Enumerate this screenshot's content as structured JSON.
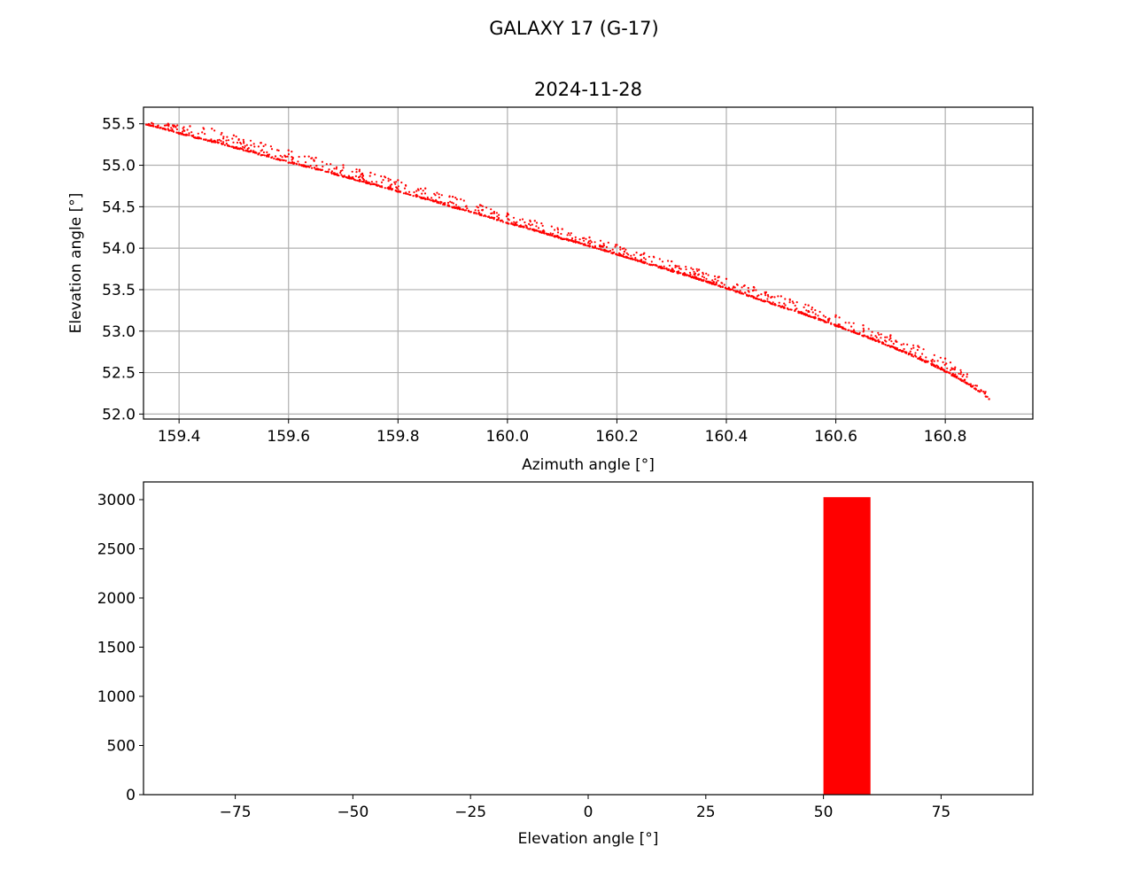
{
  "figure": {
    "suptitle": "GALAXY 17 (G-17)"
  },
  "chart_data": [
    {
      "type": "scatter",
      "title": "2024-11-28",
      "xlabel": "Azimuth angle [°]",
      "ylabel": "Elevation angle [°]",
      "xlim": [
        159.335,
        160.96
      ],
      "ylim": [
        51.94,
        55.7
      ],
      "xticks": [
        159.4,
        159.6,
        159.8,
        160.0,
        160.2,
        160.4,
        160.6,
        160.8
      ],
      "xtick_labels": [
        "159.4",
        "159.6",
        "159.8",
        "160.0",
        "160.2",
        "160.4",
        "160.6",
        "160.8"
      ],
      "yticks": [
        52.0,
        52.5,
        53.0,
        53.5,
        54.0,
        54.5,
        55.0,
        55.5
      ],
      "ytick_labels": [
        "52.0",
        "52.5",
        "53.0",
        "53.5",
        "54.0",
        "54.5",
        "55.0",
        "55.5"
      ],
      "grid": true,
      "color": "#ff0000",
      "series": [
        {
          "x": [
            159.34,
            159.37,
            159.4,
            159.43,
            159.46,
            159.5,
            159.55,
            159.6,
            159.65,
            159.7,
            159.75,
            159.8,
            159.85,
            159.9,
            159.95,
            160.0,
            160.05,
            160.1,
            160.15,
            160.2,
            160.25,
            160.3,
            160.35,
            160.4,
            160.45,
            160.5,
            160.55,
            160.6,
            160.65,
            160.7,
            160.75,
            160.8,
            160.83,
            160.86,
            160.88
          ],
          "y": [
            55.49,
            55.44,
            55.38,
            55.33,
            55.28,
            55.21,
            55.12,
            55.03,
            54.95,
            54.86,
            54.77,
            54.68,
            54.59,
            54.49,
            54.4,
            54.3,
            54.21,
            54.11,
            54.02,
            53.92,
            53.82,
            53.72,
            53.62,
            53.51,
            53.4,
            53.29,
            53.18,
            53.06,
            52.94,
            52.81,
            52.67,
            52.51,
            52.4,
            52.28,
            52.18
          ]
        },
        {
          "x": [
            159.35,
            159.38,
            159.42,
            159.46,
            159.5,
            159.55,
            159.6,
            159.65,
            159.7,
            159.75,
            159.8,
            159.85,
            159.9,
            159.95,
            160.0,
            160.05,
            160.1,
            160.15,
            160.2,
            160.25,
            160.3,
            160.35,
            160.4,
            160.45,
            160.5,
            160.55,
            160.6,
            160.65,
            160.7,
            160.75,
            160.8,
            160.84,
            160.87
          ],
          "y": [
            55.51,
            55.5,
            55.47,
            55.44,
            55.36,
            55.27,
            55.18,
            55.09,
            55.0,
            54.91,
            54.82,
            54.72,
            54.62,
            54.52,
            54.42,
            54.33,
            54.23,
            54.13,
            54.04,
            53.94,
            53.84,
            53.74,
            53.63,
            53.53,
            53.42,
            53.31,
            53.19,
            53.07,
            52.95,
            52.82,
            52.67,
            52.48,
            52.27
          ]
        }
      ]
    },
    {
      "type": "bar",
      "title": "",
      "xlabel": "Elevation angle [°]",
      "ylabel": "",
      "xlim": [
        -94.5,
        94.5
      ],
      "ylim": [
        0,
        3180
      ],
      "xticks": [
        -75,
        -50,
        -25,
        0,
        25,
        50,
        75
      ],
      "xtick_labels": [
        "−75",
        "−50",
        "−25",
        "0",
        "25",
        "50",
        "75"
      ],
      "yticks": [
        0,
        500,
        1000,
        1500,
        2000,
        2500,
        3000
      ],
      "ytick_labels": [
        "0",
        "500",
        "1000",
        "1500",
        "2000",
        "2500",
        "3000"
      ],
      "grid": false,
      "color": "#ff0000",
      "bins": [
        {
          "x0": 50,
          "x1": 60,
          "count": 3025
        }
      ]
    }
  ]
}
